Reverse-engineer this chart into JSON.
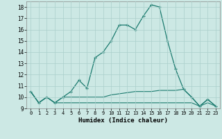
{
  "xlabel": "Humidex (Indice chaleur)",
  "x": [
    0,
    1,
    2,
    3,
    4,
    5,
    6,
    7,
    8,
    9,
    10,
    11,
    12,
    13,
    14,
    15,
    16,
    17,
    18,
    19,
    20,
    21,
    22,
    23
  ],
  "line1": [
    10.5,
    9.5,
    10.0,
    9.5,
    10.0,
    10.5,
    11.5,
    10.8,
    13.5,
    14.0,
    15.0,
    16.4,
    16.4,
    16.0,
    17.2,
    18.2,
    18.0,
    15.0,
    12.5,
    10.7,
    10.0,
    9.2,
    9.8,
    9.2
  ],
  "line2": [
    10.5,
    9.5,
    10.0,
    9.5,
    10.0,
    10.0,
    10.0,
    10.0,
    10.0,
    10.0,
    10.2,
    10.3,
    10.4,
    10.5,
    10.5,
    10.5,
    10.6,
    10.6,
    10.6,
    10.7,
    10.0,
    9.2,
    9.8,
    9.2
  ],
  "line3": [
    10.5,
    9.5,
    10.0,
    9.5,
    9.5,
    9.5,
    9.5,
    9.5,
    9.5,
    9.5,
    9.5,
    9.5,
    9.5,
    9.5,
    9.5,
    9.5,
    9.5,
    9.5,
    9.5,
    9.5,
    9.5,
    9.2,
    9.5,
    9.2
  ],
  "line_color": "#1a7a6e",
  "bg_color": "#cce8e4",
  "grid_color": "#aacfcb",
  "ylim": [
    9.0,
    18.5
  ],
  "yticks": [
    9,
    10,
    11,
    12,
    13,
    14,
    15,
    16,
    17,
    18
  ],
  "xlim": [
    -0.5,
    23.5
  ],
  "xticks": [
    0,
    1,
    2,
    3,
    4,
    5,
    6,
    7,
    8,
    9,
    10,
    11,
    12,
    13,
    14,
    15,
    16,
    17,
    18,
    19,
    20,
    21,
    22,
    23
  ]
}
